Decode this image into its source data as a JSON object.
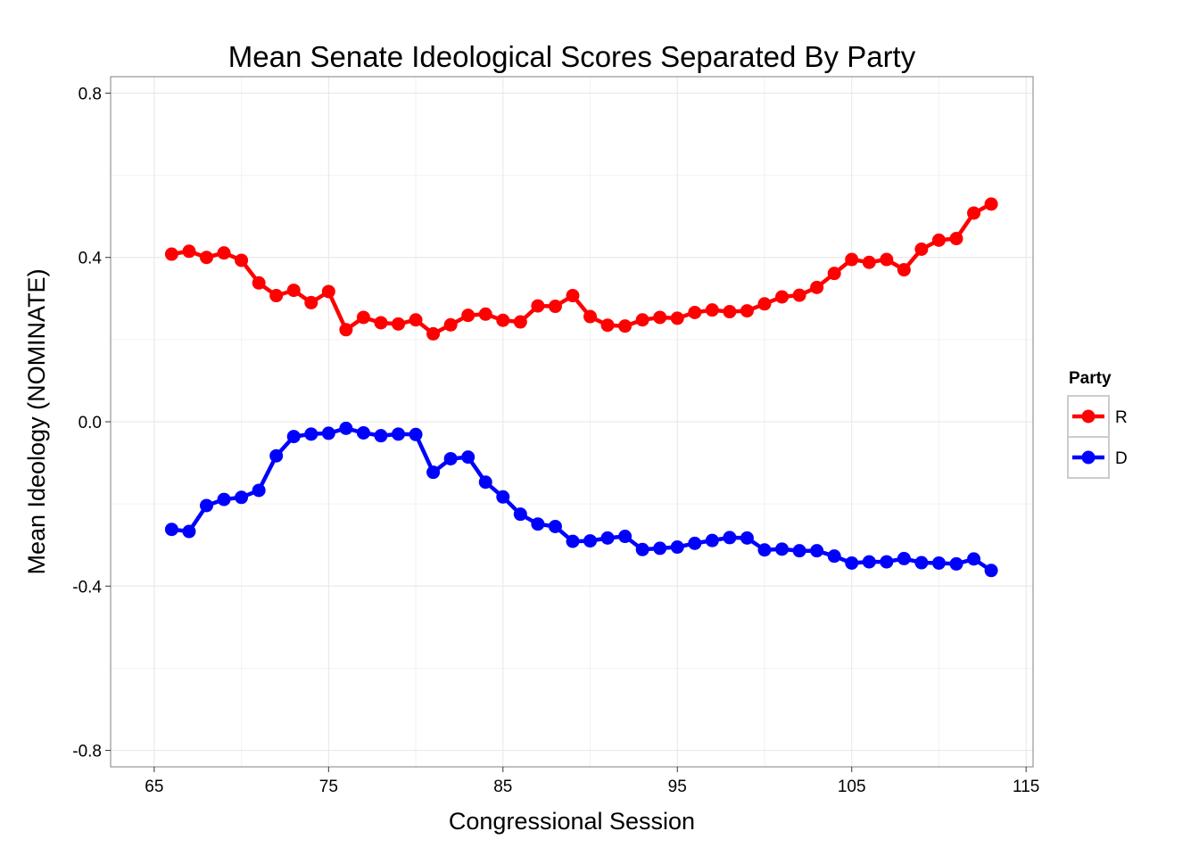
{
  "chart_data": {
    "type": "line",
    "title": "Mean Senate Ideological Scores Separated By Party",
    "xlabel": "Congressional Session",
    "ylabel": "Mean Ideology (NOMINATE)",
    "xlim": [
      62.5,
      115.4
    ],
    "ylim": [
      -0.84,
      0.84
    ],
    "x_ticks": [
      65,
      75,
      85,
      95,
      105,
      115
    ],
    "x_tick_labels": [
      "65",
      "75",
      "85",
      "95",
      "105",
      "115"
    ],
    "y_ticks": [
      0.8,
      0.4,
      0.0,
      -0.4,
      -0.8
    ],
    "y_tick_labels": [
      "0.8",
      "0.4",
      "0.0",
      "-0.4",
      "-0.8"
    ],
    "grid": true,
    "legend": {
      "title": "Party",
      "position": "right"
    },
    "x": [
      66,
      67,
      68,
      69,
      70,
      71,
      72,
      73,
      74,
      75,
      76,
      77,
      78,
      79,
      80,
      81,
      82,
      83,
      84,
      85,
      86,
      87,
      88,
      89,
      90,
      91,
      92,
      93,
      94,
      95,
      96,
      97,
      98,
      99,
      100,
      101,
      102,
      103,
      104,
      105,
      106,
      107,
      108,
      109,
      110,
      111,
      112,
      113
    ],
    "series": [
      {
        "name": "R",
        "color": "#ff0000",
        "values": [
          0.408,
          0.415,
          0.4,
          0.411,
          0.393,
          0.338,
          0.307,
          0.32,
          0.29,
          0.317,
          0.224,
          0.254,
          0.241,
          0.238,
          0.248,
          0.214,
          0.236,
          0.259,
          0.262,
          0.247,
          0.243,
          0.282,
          0.281,
          0.307,
          0.256,
          0.235,
          0.233,
          0.248,
          0.254,
          0.252,
          0.266,
          0.272,
          0.268,
          0.27,
          0.287,
          0.304,
          0.308,
          0.327,
          0.361,
          0.395,
          0.388,
          0.395,
          0.37,
          0.42,
          0.442,
          0.446,
          0.508,
          0.53
        ]
      },
      {
        "name": "D",
        "color": "#0000ff",
        "values": [
          -0.262,
          -0.267,
          -0.204,
          -0.189,
          -0.184,
          -0.167,
          -0.083,
          -0.036,
          -0.03,
          -0.028,
          -0.016,
          -0.027,
          -0.034,
          -0.03,
          -0.031,
          -0.123,
          -0.09,
          -0.086,
          -0.147,
          -0.183,
          -0.225,
          -0.249,
          -0.255,
          -0.291,
          -0.29,
          -0.283,
          -0.279,
          -0.311,
          -0.308,
          -0.305,
          -0.296,
          -0.289,
          -0.282,
          -0.283,
          -0.312,
          -0.31,
          -0.314,
          -0.314,
          -0.327,
          -0.344,
          -0.341,
          -0.341,
          -0.333,
          -0.343,
          -0.344,
          -0.346,
          -0.334,
          -0.362
        ]
      }
    ]
  }
}
